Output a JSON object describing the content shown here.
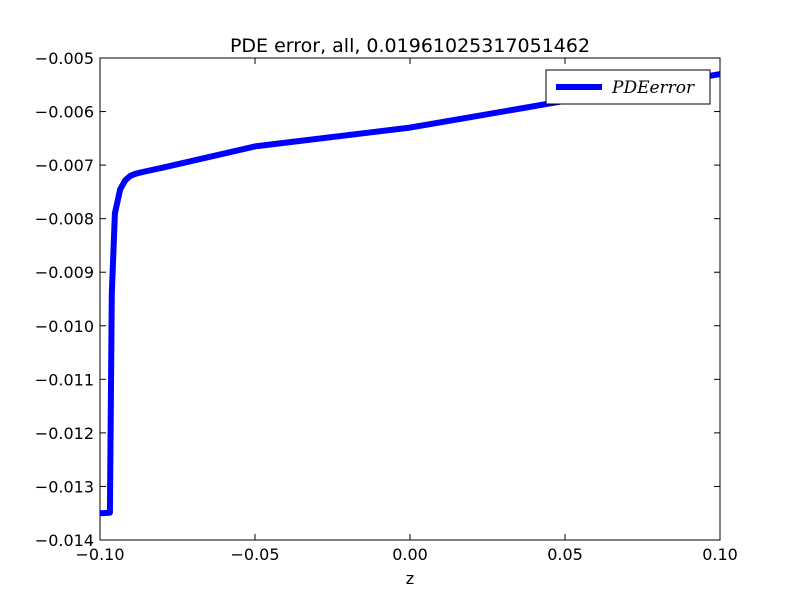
{
  "chart_data": {
    "type": "line",
    "title": "PDE error, all, 0.01961025317051462",
    "xlabel": "z",
    "ylabel": "",
    "xlim": [
      -0.1,
      0.1
    ],
    "ylim": [
      -0.014,
      -0.005
    ],
    "x_ticks": [
      "−0.10",
      "−0.05",
      "0.00",
      "0.05",
      "0.10"
    ],
    "y_ticks": [
      "−0.005",
      "−0.006",
      "−0.007",
      "−0.008",
      "−0.009",
      "−0.010",
      "−0.011",
      "−0.012",
      "−0.013",
      "−0.014"
    ],
    "x_tick_values": [
      -0.1,
      -0.05,
      0.0,
      0.05,
      0.1
    ],
    "y_tick_values": [
      -0.005,
      -0.006,
      -0.007,
      -0.008,
      -0.009,
      -0.01,
      -0.011,
      -0.012,
      -0.013,
      -0.014
    ],
    "grid": false,
    "legend_position": "top-right",
    "series": [
      {
        "name": "PDEerror",
        "color": "#0000ff",
        "x": [
          -0.1,
          -0.0968,
          -0.0962,
          -0.0952,
          -0.0935,
          -0.0918,
          -0.0902,
          -0.0885,
          -0.0855,
          -0.08,
          -0.05,
          0.0,
          0.05,
          0.1
        ],
        "y": [
          -0.0135,
          -0.01349,
          -0.0094,
          -0.0079,
          -0.00745,
          -0.00728,
          -0.0072,
          -0.00716,
          -0.00712,
          -0.00705,
          -0.00665,
          -0.0063,
          -0.0058,
          -0.0053
        ]
      }
    ]
  }
}
